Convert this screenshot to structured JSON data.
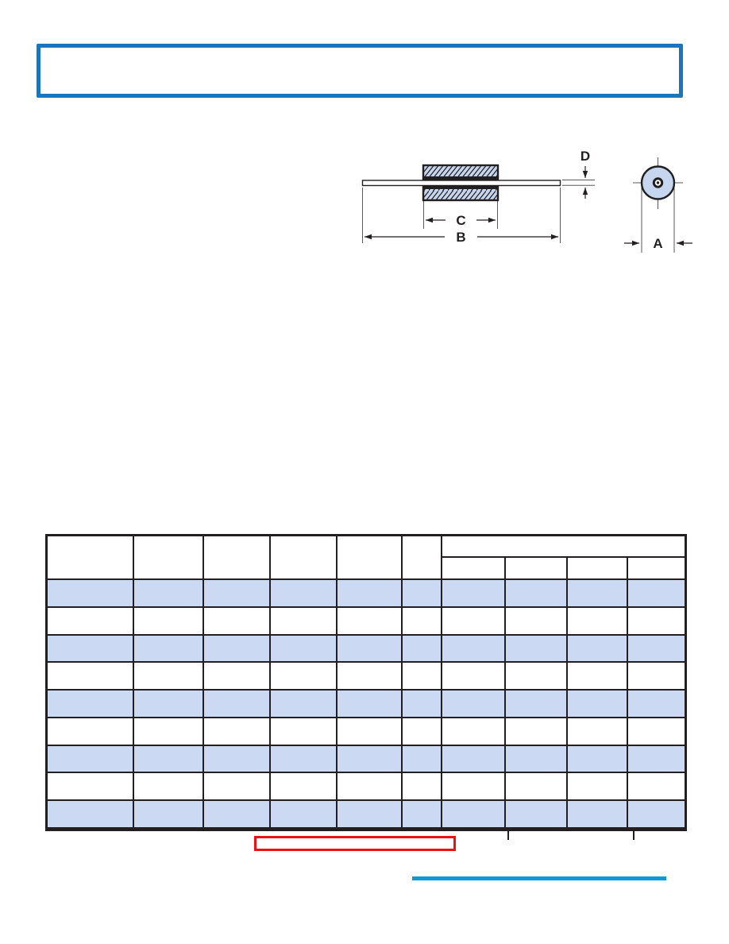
{
  "drawing": {
    "labels": {
      "a": "A",
      "b": "B",
      "c": "C",
      "d": "D"
    }
  },
  "table": {
    "row_count": 9,
    "main_column_count": 6,
    "group_sub_column_count": 4
  },
  "colors": {
    "accent_blue": "#1B75BC",
    "row_stripe": "#CBDAF2",
    "bead_fill": "#C5D6EE",
    "footer_line": "#0D99D5",
    "callout_red": "#EC1115",
    "ink": "#231F20",
    "thin_line": "#5A5A5A"
  }
}
